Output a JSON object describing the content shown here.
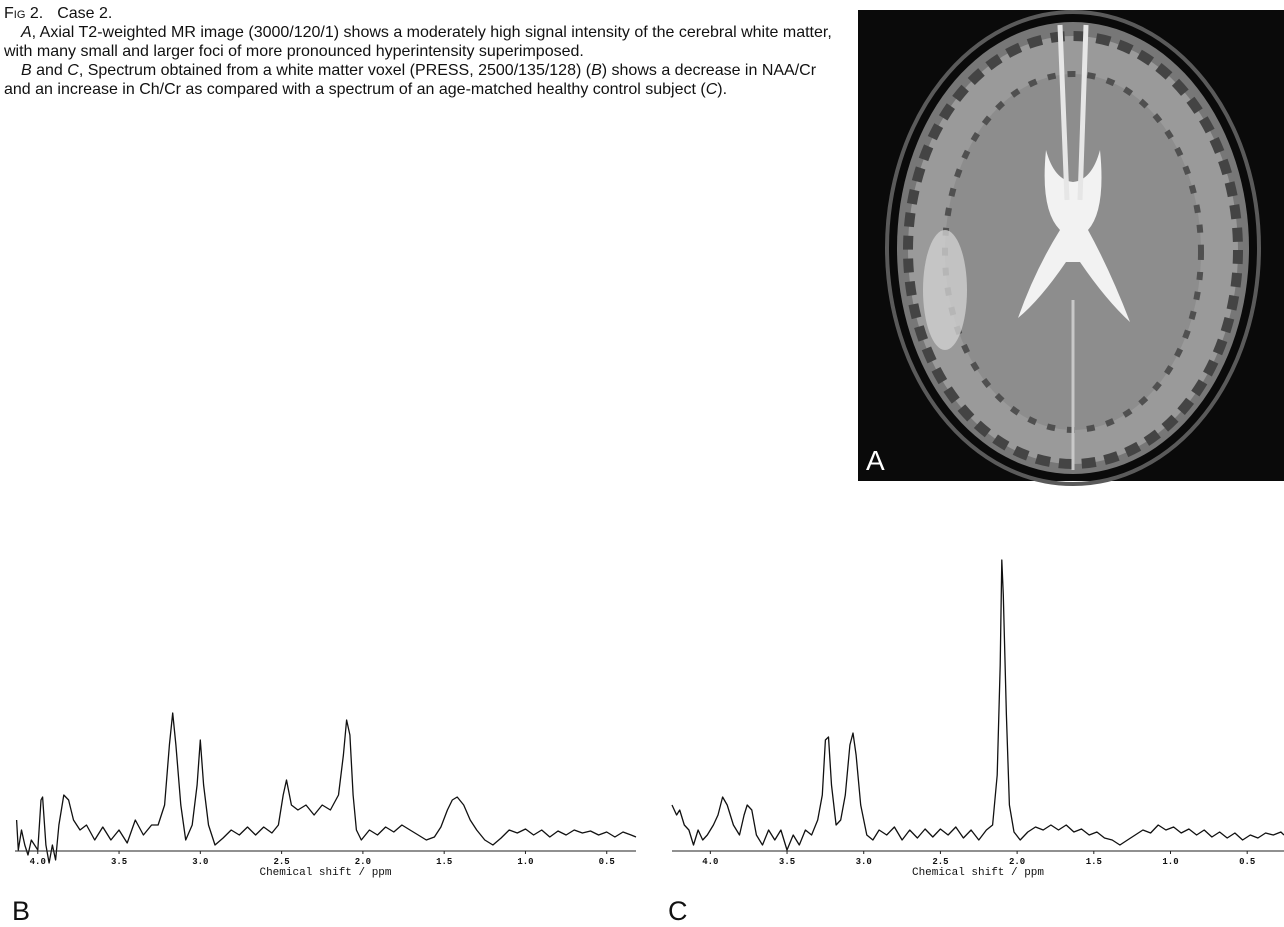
{
  "caption": {
    "label": "Fig 2.",
    "title": "Case 2.",
    "paragraphs": [
      [
        {
          "italic": "A"
        },
        ", Axial T2-weighted MR image (3000/120/1) shows a moderately high signal intensity of the cerebral white matter, with many small and larger foci of more pronounced hyperintensity superimposed."
      ],
      [
        {
          "italic": "B"
        },
        " and ",
        {
          "italic": "C"
        },
        ", Spectrum obtained from a white matter voxel (PRESS, 2500/135/128) (",
        {
          "italic": "B"
        },
        ") shows a decrease in NAA/Cr and an increase in Ch/Cr as compared with a spectrum of an age-matched healthy control subject (",
        {
          "italic": "C"
        },
        ")."
      ]
    ]
  },
  "panel_a": {
    "label": "A"
  },
  "chart_data": [
    {
      "type": "line",
      "panel_label": "B",
      "xlabel": "Chemical shift / ppm",
      "color": "#111111",
      "xlim": [
        4.14,
        0.32
      ],
      "ylim": [
        -3,
        15
      ],
      "xticks": [
        {
          "value": 4,
          "label": "4.0"
        },
        3.5,
        {
          "value": 3,
          "label": "3.0"
        },
        2.5,
        {
          "value": 2,
          "label": "2.0"
        },
        1.5,
        {
          "value": 1,
          "label": "1.0"
        },
        0.5
      ],
      "x": [
        4.13,
        4.12,
        4.1,
        4.08,
        4.06,
        4.04,
        4.0,
        3.98,
        3.97,
        3.95,
        3.93,
        3.91,
        3.89,
        3.87,
        3.84,
        3.81,
        3.78,
        3.74,
        3.7,
        3.65,
        3.6,
        3.55,
        3.5,
        3.45,
        3.4,
        3.35,
        3.3,
        3.26,
        3.22,
        3.19,
        3.17,
        3.15,
        3.12,
        3.09,
        3.05,
        3.02,
        3.0,
        2.98,
        2.95,
        2.91,
        2.86,
        2.81,
        2.76,
        2.71,
        2.66,
        2.61,
        2.56,
        2.52,
        2.49,
        2.47,
        2.44,
        2.4,
        2.35,
        2.3,
        2.25,
        2.2,
        2.15,
        2.12,
        2.1,
        2.08,
        2.06,
        2.04,
        2.01,
        1.96,
        1.91,
        1.86,
        1.81,
        1.76,
        1.71,
        1.66,
        1.61,
        1.56,
        1.52,
        1.48,
        1.45,
        1.42,
        1.38,
        1.34,
        1.3,
        1.25,
        1.2,
        1.15,
        1.1,
        1.05,
        1.0,
        0.95,
        0.9,
        0.85,
        0.8,
        0.75,
        0.7,
        0.65,
        0.6,
        0.55,
        0.5,
        0.45,
        0.4,
        0.35,
        0.32
      ],
      "values": [
        1.5,
        -1.5,
        0.5,
        -1,
        -2,
        -0.5,
        -1.5,
        3.5,
        3.8,
        -1,
        -2.8,
        -1,
        -2.5,
        1,
        4,
        3.5,
        1.5,
        0.5,
        1,
        -0.5,
        0.8,
        -0.5,
        0.5,
        -0.8,
        1.5,
        0,
        1,
        1,
        3,
        9,
        12.2,
        9,
        3,
        -0.5,
        1,
        5,
        9.5,
        5,
        1,
        -1,
        -0.3,
        0.5,
        0,
        0.8,
        0,
        0.8,
        0.2,
        1,
        4,
        5.5,
        3,
        2.5,
        3,
        2,
        3,
        2.5,
        4,
        8,
        11.5,
        10,
        4,
        0.5,
        -0.5,
        0.5,
        0,
        0.8,
        0.3,
        1,
        0.5,
        0,
        -0.5,
        -0.2,
        0.8,
        2.5,
        3.5,
        3.8,
        3,
        1.5,
        0.5,
        -0.5,
        -1,
        -0.3,
        0.5,
        0.2,
        0.6,
        0,
        0.5,
        -0.2,
        0.4,
        0,
        0.5,
        0.2,
        0.4,
        0,
        0.3,
        -0.2,
        0.3,
        0,
        -0.2
      ]
    },
    {
      "type": "line",
      "panel_label": "C",
      "xlabel": "Chemical shift / ppm",
      "color": "#111111",
      "xlim": [
        4.25,
        0.26
      ],
      "ylim": [
        -3,
        28
      ],
      "xticks": [
        {
          "value": 4,
          "label": "4.0"
        },
        3.5,
        {
          "value": 3,
          "label": "3.0"
        },
        2.5,
        {
          "value": 2,
          "label": "2.0"
        },
        1.5,
        {
          "value": 1,
          "label": "1.0"
        },
        0.5
      ],
      "x": [
        4.25,
        4.22,
        4.2,
        4.17,
        4.14,
        4.11,
        4.08,
        4.05,
        4.02,
        3.98,
        3.95,
        3.92,
        3.89,
        3.85,
        3.81,
        3.78,
        3.76,
        3.73,
        3.7,
        3.66,
        3.62,
        3.58,
        3.54,
        3.5,
        3.46,
        3.42,
        3.38,
        3.34,
        3.3,
        3.27,
        3.25,
        3.23,
        3.21,
        3.18,
        3.15,
        3.12,
        3.09,
        3.07,
        3.05,
        3.02,
        2.98,
        2.94,
        2.9,
        2.85,
        2.8,
        2.75,
        2.7,
        2.65,
        2.6,
        2.55,
        2.5,
        2.45,
        2.4,
        2.35,
        2.3,
        2.25,
        2.2,
        2.16,
        2.13,
        2.11,
        2.1,
        2.09,
        2.07,
        2.05,
        2.02,
        1.98,
        1.93,
        1.88,
        1.83,
        1.78,
        1.73,
        1.68,
        1.63,
        1.58,
        1.53,
        1.48,
        1.43,
        1.38,
        1.33,
        1.28,
        1.23,
        1.18,
        1.13,
        1.08,
        1.03,
        0.98,
        0.93,
        0.88,
        0.83,
        0.78,
        0.73,
        0.68,
        0.63,
        0.58,
        0.53,
        0.48,
        0.43,
        0.38,
        0.33,
        0.28,
        0.26
      ],
      "values": [
        3,
        2,
        2.5,
        1,
        0.5,
        -1,
        0.5,
        -0.5,
        0,
        1,
        2,
        3.8,
        3,
        1,
        0,
        2,
        3,
        2.5,
        0,
        -1,
        0.5,
        -0.5,
        0.5,
        -1.5,
        0,
        -1,
        0.5,
        0,
        1.5,
        4,
        9.5,
        9.8,
        5,
        1,
        1.5,
        4,
        9,
        10.2,
        8,
        3,
        0,
        -0.5,
        0.5,
        0,
        0.8,
        -0.5,
        0.5,
        -0.3,
        0.6,
        -0.2,
        0.6,
        0,
        0.8,
        -0.3,
        0.5,
        -0.5,
        0.5,
        1,
        6,
        17,
        27.5,
        24,
        12,
        3,
        0.3,
        -0.5,
        0.3,
        0.8,
        0.5,
        1,
        0.5,
        1,
        0.3,
        0.6,
        0,
        0.3,
        -0.3,
        -0.5,
        -1,
        -0.5,
        0,
        0.5,
        0.2,
        1,
        0.5,
        0.8,
        0.2,
        0.6,
        0,
        0.5,
        -0.2,
        0.3,
        -0.3,
        0.2,
        -0.5,
        0,
        -0.3,
        0.2,
        0,
        0.3,
        0
      ]
    }
  ]
}
